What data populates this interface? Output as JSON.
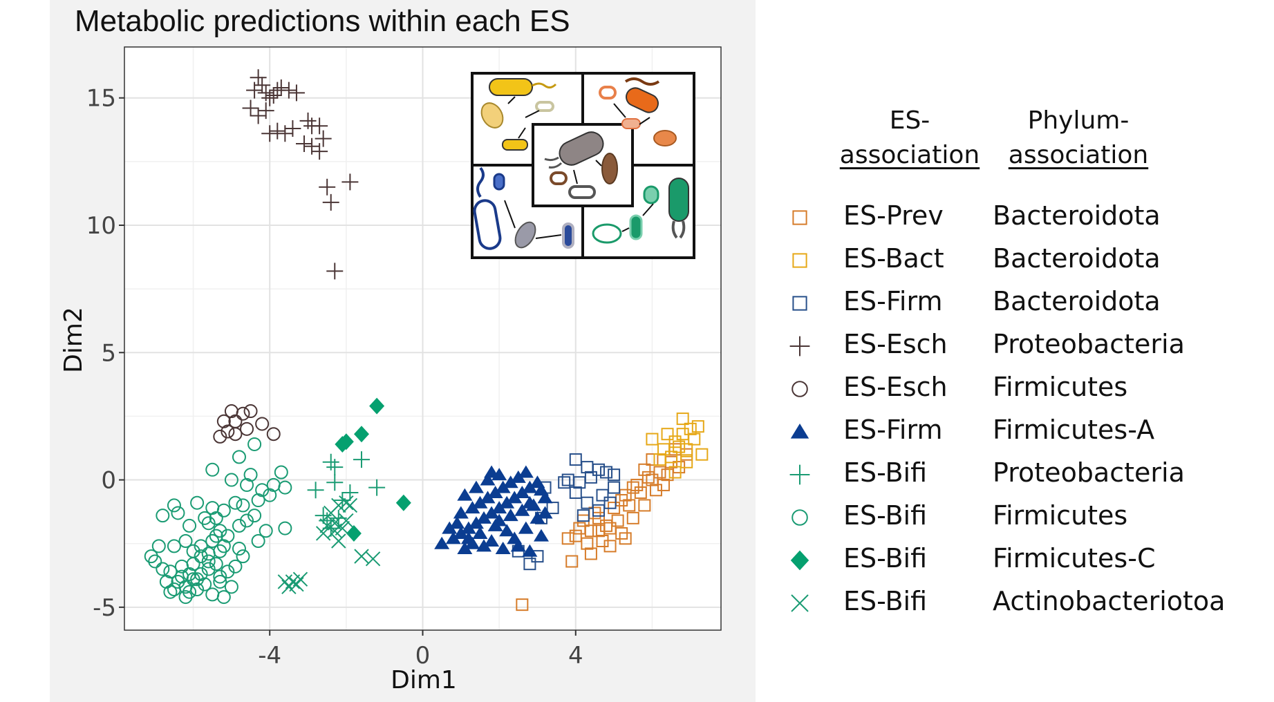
{
  "chart_data": {
    "type": "scatter",
    "title": "Metabolic predictions within each ES",
    "xlabel": "Dim1",
    "ylabel": "Dim2",
    "xlim": [
      -7.8,
      7.8
    ],
    "ylim": [
      -5.9,
      17
    ],
    "xticks": [
      -4,
      0,
      4
    ],
    "xtick_labels": [
      "-4",
      "0",
      "4"
    ],
    "yticks": [
      -5,
      0,
      5,
      10,
      15
    ],
    "ytick_labels": [
      "-5",
      "0",
      "5",
      "10",
      "15"
    ],
    "grid": true,
    "legend": {
      "position": "right",
      "es_header_line1": "ES-",
      "es_header_line2": "association",
      "phylum_header_line1": "Phylum-",
      "phylum_header_line2": "association"
    },
    "series": [
      {
        "name": "ES-Prev",
        "phylum": "Bacteroidota",
        "marker": "square",
        "color": "#d67c2a",
        "points": [
          [
            4.0,
            -2.2
          ],
          [
            4.3,
            -2.5
          ],
          [
            4.6,
            -2.0
          ],
          [
            4.9,
            -2.6
          ],
          [
            5.2,
            -2.1
          ],
          [
            5.5,
            -1.5
          ],
          [
            5.8,
            -1.0
          ],
          [
            6.1,
            -0.4
          ],
          [
            6.4,
            0.2
          ],
          [
            6.7,
            0.5
          ],
          [
            6.9,
            1.0
          ],
          [
            4.2,
            -1.6
          ],
          [
            4.5,
            -1.3
          ],
          [
            4.8,
            -1.8
          ],
          [
            5.0,
            -1.1
          ],
          [
            5.3,
            -0.6
          ],
          [
            5.6,
            -0.2
          ],
          [
            5.9,
            0.1
          ],
          [
            6.2,
            0.3
          ],
          [
            6.5,
            0.7
          ],
          [
            4.4,
            -2.9
          ],
          [
            4.7,
            -2.4
          ],
          [
            5.1,
            -1.6
          ],
          [
            5.4,
            -1.0
          ],
          [
            5.7,
            -0.5
          ],
          [
            6.0,
            0.0
          ],
          [
            6.3,
            -0.2
          ],
          [
            6.6,
            1.2
          ],
          [
            3.8,
            -2.3
          ],
          [
            3.9,
            -3.2
          ],
          [
            4.1,
            -1.9
          ],
          [
            4.6,
            -1.5
          ],
          [
            5.2,
            -0.8
          ],
          [
            5.5,
            -0.3
          ],
          [
            5.8,
            0.4
          ],
          [
            6.0,
            0.8
          ],
          [
            2.6,
            -4.9
          ],
          [
            4.9,
            -1.9
          ],
          [
            5.3,
            -2.3
          ],
          [
            4.4,
            -2.0
          ]
        ]
      },
      {
        "name": "ES-Bact",
        "phylum": "Bacteroidota",
        "marker": "square",
        "color": "#e6a817",
        "points": [
          [
            6.3,
            1.2
          ],
          [
            6.6,
            1.5
          ],
          [
            6.8,
            1.8
          ],
          [
            7.0,
            2.0
          ],
          [
            7.2,
            2.1
          ],
          [
            6.5,
            0.9
          ],
          [
            6.7,
            1.3
          ],
          [
            6.9,
            0.7
          ],
          [
            7.1,
            1.6
          ],
          [
            6.4,
            1.8
          ],
          [
            6.2,
            0.8
          ],
          [
            6.6,
            0.3
          ],
          [
            6.8,
            2.4
          ],
          [
            7.3,
            1.0
          ],
          [
            6.0,
            1.6
          ],
          [
            6.9,
            1.2
          ]
        ]
      },
      {
        "name": "ES-Firm",
        "phylum": "Bacteroidota",
        "marker": "square",
        "color": "#274f8a",
        "points": [
          [
            4.0,
            0.8
          ],
          [
            4.3,
            0.5
          ],
          [
            4.6,
            0.4
          ],
          [
            4.8,
            0.3
          ],
          [
            5.0,
            0.2
          ],
          [
            3.7,
            -0.1
          ],
          [
            4.0,
            -0.5
          ],
          [
            4.3,
            -0.9
          ],
          [
            4.6,
            -1.2
          ],
          [
            3.4,
            -1.1
          ],
          [
            3.8,
            0.0
          ],
          [
            4.4,
            0.1
          ],
          [
            5.0,
            -0.3
          ],
          [
            3.2,
            -0.3
          ],
          [
            4.1,
            -0.1
          ],
          [
            4.7,
            -0.6
          ],
          [
            3.1,
            -1.5
          ],
          [
            2.5,
            -2.8
          ],
          [
            2.8,
            -3.3
          ],
          [
            3.0,
            -3.0
          ],
          [
            4.9,
            -0.9
          ],
          [
            4.2,
            -1.4
          ]
        ]
      },
      {
        "name": "ES-Esch",
        "phylum": "Proteobacteria",
        "marker": "plus",
        "color": "#4a3535",
        "points": [
          [
            -4.3,
            15.8
          ],
          [
            -4.2,
            15.5
          ],
          [
            -4.1,
            15.2
          ],
          [
            -4.0,
            15.0
          ],
          [
            -3.9,
            15.1
          ],
          [
            -3.8,
            15.3
          ],
          [
            -3.7,
            15.4
          ],
          [
            -3.5,
            15.3
          ],
          [
            -3.3,
            15.2
          ],
          [
            -4.5,
            14.6
          ],
          [
            -4.3,
            14.3
          ],
          [
            -4.1,
            14.5
          ],
          [
            -4.0,
            13.6
          ],
          [
            -3.8,
            13.7
          ],
          [
            -3.6,
            13.6
          ],
          [
            -3.4,
            13.8
          ],
          [
            -3.0,
            14.1
          ],
          [
            -2.9,
            13.9
          ],
          [
            -2.7,
            13.9
          ],
          [
            -3.1,
            13.2
          ],
          [
            -2.9,
            13.1
          ],
          [
            -2.7,
            12.9
          ],
          [
            -2.6,
            13.4
          ],
          [
            -2.5,
            11.5
          ],
          [
            -2.4,
            10.9
          ],
          [
            -1.9,
            11.7
          ],
          [
            -2.3,
            8.2
          ],
          [
            -4.4,
            15.3
          ]
        ]
      },
      {
        "name": "ES-Esch",
        "phylum": "Firmicutes",
        "marker": "circle",
        "color": "#4a3535",
        "points": [
          [
            -5.0,
            2.7
          ],
          [
            -4.7,
            2.6
          ],
          [
            -4.5,
            2.7
          ],
          [
            -5.2,
            2.3
          ],
          [
            -4.9,
            2.3
          ],
          [
            -4.6,
            2.0
          ],
          [
            -5.1,
            1.9
          ],
          [
            -4.9,
            1.8
          ],
          [
            -5.3,
            1.7
          ],
          [
            -4.2,
            2.2
          ],
          [
            -3.9,
            1.8
          ]
        ]
      },
      {
        "name": "ES-Firm",
        "phylum": "Firmicutes-A",
        "marker": "triangle",
        "color": "#0b3d91",
        "points": [
          [
            0.5,
            -2.5
          ],
          [
            0.8,
            -2.3
          ],
          [
            1.0,
            -2.1
          ],
          [
            1.2,
            -1.9
          ],
          [
            1.4,
            -1.7
          ],
          [
            1.6,
            -1.5
          ],
          [
            1.8,
            -1.3
          ],
          [
            2.0,
            -1.1
          ],
          [
            2.2,
            -0.9
          ],
          [
            2.4,
            -0.7
          ],
          [
            2.6,
            -0.5
          ],
          [
            2.8,
            -0.3
          ],
          [
            3.0,
            -0.1
          ],
          [
            3.2,
            -0.7
          ],
          [
            1.0,
            -1.3
          ],
          [
            1.3,
            -1.1
          ],
          [
            1.5,
            -0.9
          ],
          [
            1.7,
            -0.7
          ],
          [
            1.9,
            -0.5
          ],
          [
            2.1,
            -0.3
          ],
          [
            2.3,
            -0.1
          ],
          [
            2.5,
            0.1
          ],
          [
            2.7,
            0.3
          ],
          [
            1.1,
            -0.6
          ],
          [
            1.4,
            -0.3
          ],
          [
            1.7,
            0.0
          ],
          [
            2.0,
            0.2
          ],
          [
            1.8,
            0.3
          ],
          [
            0.9,
            -1.7
          ],
          [
            1.2,
            -2.3
          ],
          [
            1.5,
            -2.1
          ],
          [
            1.8,
            -2.4
          ],
          [
            2.1,
            -2.7
          ],
          [
            2.4,
            -2.3
          ],
          [
            2.7,
            -1.9
          ],
          [
            3.0,
            -1.5
          ],
          [
            3.1,
            -2.2
          ],
          [
            2.8,
            -2.8
          ],
          [
            2.5,
            -2.6
          ],
          [
            2.2,
            -2.0
          ],
          [
            1.9,
            -1.8
          ],
          [
            1.6,
            -2.6
          ],
          [
            1.3,
            -2.5
          ],
          [
            1.1,
            -2.7
          ],
          [
            0.7,
            -1.9
          ],
          [
            2.0,
            -1.6
          ],
          [
            2.3,
            -1.4
          ],
          [
            2.6,
            -1.2
          ],
          [
            2.9,
            -1.0
          ],
          [
            3.2,
            -1.3
          ],
          [
            3.1,
            -0.4
          ],
          [
            2.8,
            -0.9
          ]
        ]
      },
      {
        "name": "ES-Bifi",
        "phylum": "Proteobacteria",
        "marker": "plus",
        "color": "#1a9b73",
        "points": [
          [
            -2.4,
            0.7
          ],
          [
            -2.3,
            0.5
          ],
          [
            -1.6,
            0.8
          ],
          [
            -1.2,
            -0.3
          ],
          [
            -2.8,
            -0.4
          ],
          [
            -2.3,
            -0.1
          ],
          [
            -2.1,
            -0.8
          ],
          [
            -1.9,
            -0.5
          ],
          [
            -2.5,
            -1.6
          ],
          [
            -2.4,
            -1.9
          ],
          [
            -2.2,
            -1.5
          ],
          [
            -2.6,
            -1.4
          ]
        ]
      },
      {
        "name": "ES-Bifi",
        "phylum": "Firmicutes",
        "marker": "circle",
        "color": "#1a9b73",
        "points": [
          [
            -4.8,
            0.9
          ],
          [
            -4.4,
            1.4
          ],
          [
            -5.5,
            0.4
          ],
          [
            -5.0,
            0.0
          ],
          [
            -4.9,
            -0.9
          ],
          [
            -4.7,
            -1.0
          ],
          [
            -5.2,
            -1.2
          ],
          [
            -5.4,
            -1.5
          ],
          [
            -5.6,
            -1.7
          ],
          [
            -5.3,
            -2.0
          ],
          [
            -5.5,
            -2.4
          ],
          [
            -5.2,
            -2.6
          ],
          [
            -5.1,
            -2.2
          ],
          [
            -5.3,
            -2.8
          ],
          [
            -4.8,
            -1.8
          ],
          [
            -4.6,
            -1.6
          ],
          [
            -4.4,
            -1.4
          ],
          [
            -4.1,
            -2.0
          ],
          [
            -4.3,
            -2.4
          ],
          [
            -4.0,
            -0.6
          ],
          [
            -4.2,
            -0.4
          ],
          [
            -4.6,
            -0.2
          ],
          [
            -4.5,
            0.2
          ],
          [
            -4.3,
            -0.8
          ],
          [
            -3.9,
            -0.2
          ],
          [
            -3.7,
            0.3
          ],
          [
            -3.6,
            -0.3
          ],
          [
            -4.7,
            -3.0
          ],
          [
            -4.9,
            -3.4
          ],
          [
            -5.1,
            -3.6
          ],
          [
            -5.3,
            -3.8
          ],
          [
            -5.6,
            -3.5
          ],
          [
            -5.8,
            -3.7
          ],
          [
            -6.0,
            -3.9
          ],
          [
            -6.2,
            -4.2
          ],
          [
            -6.4,
            -4.0
          ],
          [
            -6.6,
            -3.6
          ],
          [
            -6.3,
            -3.4
          ],
          [
            -6.1,
            -3.7
          ],
          [
            -5.9,
            -4.3
          ],
          [
            -5.7,
            -4.1
          ],
          [
            -5.5,
            -4.5
          ],
          [
            -5.3,
            -4.0
          ],
          [
            -6.5,
            -4.3
          ],
          [
            -6.7,
            -4.0
          ],
          [
            -6.0,
            -3.3
          ],
          [
            -5.6,
            -3.2
          ],
          [
            -6.8,
            -3.5
          ],
          [
            -7.0,
            -3.2
          ],
          [
            -7.1,
            -3.0
          ],
          [
            -6.9,
            -2.6
          ],
          [
            -6.5,
            -2.6
          ],
          [
            -6.2,
            -2.4
          ],
          [
            -6.0,
            -2.8
          ],
          [
            -5.8,
            -2.6
          ],
          [
            -6.8,
            -1.4
          ],
          [
            -6.5,
            -1.0
          ],
          [
            -6.4,
            -1.3
          ],
          [
            -6.1,
            -1.8
          ],
          [
            -5.7,
            -1.5
          ],
          [
            -5.5,
            -1.1
          ],
          [
            -5.9,
            -0.9
          ],
          [
            -5.4,
            -2.2
          ],
          [
            -5.6,
            -2.9
          ],
          [
            -5.8,
            -3.0
          ],
          [
            -4.8,
            -2.7
          ],
          [
            -3.6,
            -1.9
          ],
          [
            -6.2,
            -4.6
          ],
          [
            -6.1,
            -4.4
          ],
          [
            -5.9,
            -3.9
          ],
          [
            -6.3,
            -3.8
          ],
          [
            -6.6,
            -4.4
          ],
          [
            -5.4,
            -3.3
          ],
          [
            -5.0,
            -4.2
          ],
          [
            -5.2,
            -4.6
          ]
        ]
      },
      {
        "name": "ES-Bifi",
        "phylum": "Firmicutes-C",
        "marker": "diamond",
        "color": "#05a06f",
        "points": [
          [
            -1.2,
            2.9
          ],
          [
            -1.6,
            1.8
          ],
          [
            -2.0,
            1.5
          ],
          [
            -2.1,
            1.4
          ],
          [
            -0.5,
            -0.9
          ],
          [
            -1.8,
            -2.1
          ]
        ]
      },
      {
        "name": "ES-Bifi",
        "phylum": "Actinobacteriotoa",
        "marker": "x",
        "color": "#1a9b73",
        "points": [
          [
            -2.4,
            -1.3
          ],
          [
            -2.2,
            -1.0
          ],
          [
            -2.0,
            -0.9
          ],
          [
            -2.3,
            -1.7
          ],
          [
            -2.1,
            -1.9
          ],
          [
            -2.2,
            -2.4
          ],
          [
            -2.0,
            -1.6
          ],
          [
            -2.6,
            -2.1
          ],
          [
            -1.6,
            -3.0
          ],
          [
            -1.3,
            -3.1
          ],
          [
            -3.5,
            -4.2
          ],
          [
            -3.4,
            -4.0
          ],
          [
            -3.3,
            -4.1
          ],
          [
            -3.2,
            -3.9
          ],
          [
            -3.6,
            -4.0
          ],
          [
            -2.5,
            -1.8
          ],
          [
            -1.9,
            -1.0
          ],
          [
            -2.3,
            -2.0
          ]
        ]
      }
    ]
  }
}
